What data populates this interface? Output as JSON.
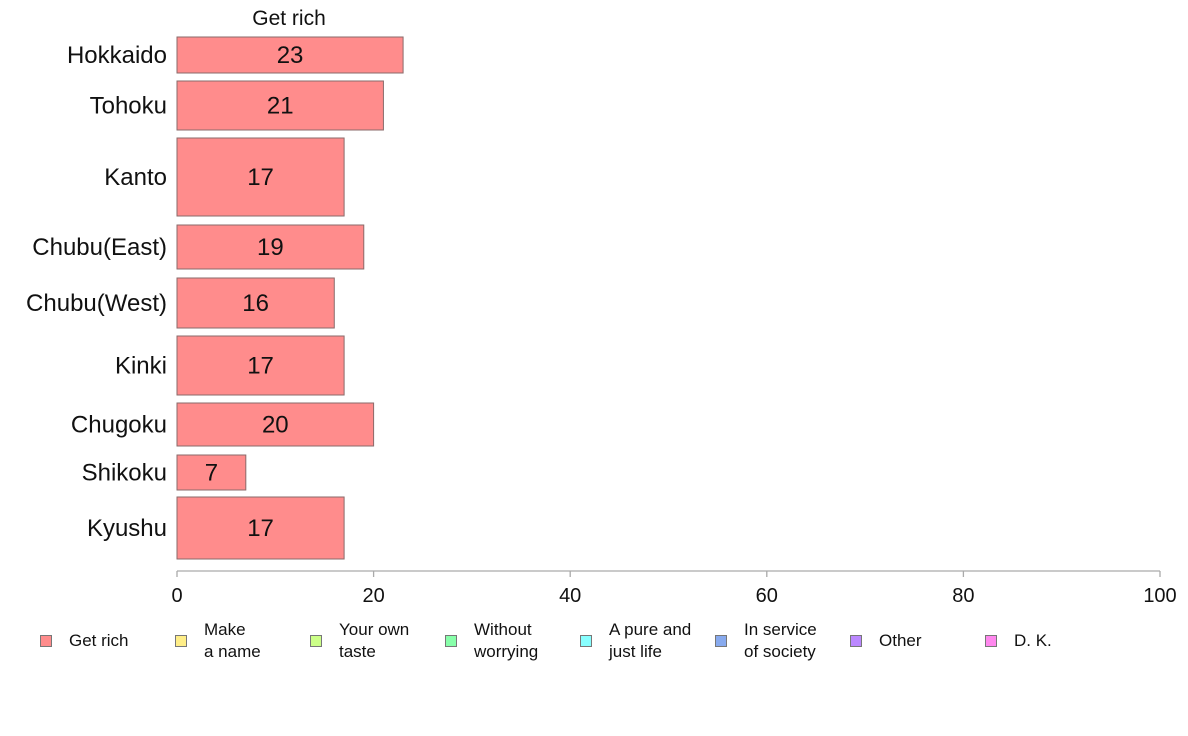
{
  "chart_data": {
    "type": "bar",
    "orientation": "horizontal",
    "title": "Get rich",
    "categories": [
      "Hokkaido",
      "Tohoku",
      "Kanto",
      "Chubu(East)",
      "Chubu(West)",
      "Kinki",
      "Chugoku",
      "Shikoku",
      "Kyushu"
    ],
    "series": [
      {
        "name": "Get rich",
        "values": [
          23,
          21,
          17,
          19,
          16,
          17,
          20,
          7,
          17
        ],
        "color": "#ff8c8c"
      }
    ],
    "xlim": [
      0,
      100
    ],
    "x_ticks": [
      "0",
      "20",
      "40",
      "60",
      "80",
      "100"
    ],
    "grid": false,
    "legend": {
      "placement": "bottom",
      "entries": [
        {
          "label": "Get rich",
          "color": "#ff8c8c"
        },
        {
          "label": "Make\na name",
          "color": "#ffee88"
        },
        {
          "label": "Your own\ntaste",
          "color": "#ccff88"
        },
        {
          "label": "Without\nworrying",
          "color": "#88ffaa"
        },
        {
          "label": "A pure and\njust life",
          "color": "#88ffff"
        },
        {
          "label": "In service\nof society",
          "color": "#88aaee"
        },
        {
          "label": "Other",
          "color": "#bb88ff"
        },
        {
          "label": "D. K.",
          "color": "#ff88ee"
        }
      ]
    }
  }
}
